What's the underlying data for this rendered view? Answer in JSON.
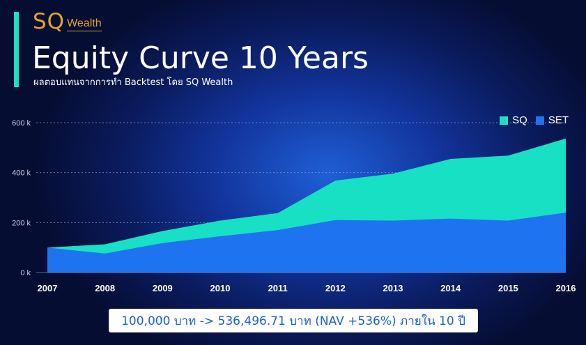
{
  "header": {
    "brand_sq": "SQ",
    "brand_wealth": "Wealth",
    "title": "Equity Curve 10 Years",
    "subtitle": "ผลตอบแทนจากการทำ Backtest โดย SQ Wealth"
  },
  "footer": {
    "summary": "100,000 บาท -> 536,496.71 บาท (NAV +536%) ภายใน 10 ปี"
  },
  "colors": {
    "sq": "#18e0c4",
    "set": "#1e74f0",
    "accent": "#18e0c4",
    "brand": "#e2a52a"
  },
  "chart_data": {
    "type": "area",
    "title": "",
    "xlabel": "",
    "ylabel": "",
    "x": [
      "2007",
      "2008",
      "2009",
      "2010",
      "2011",
      "2012",
      "2013",
      "2014",
      "2015",
      "2016"
    ],
    "series": [
      {
        "name": "SQ",
        "values": [
          100000,
          113000,
          166000,
          208000,
          238000,
          368000,
          396000,
          455000,
          468000,
          536496.71
        ]
      },
      {
        "name": "SET",
        "values": [
          100000,
          76000,
          118000,
          145000,
          170000,
          210000,
          208000,
          216000,
          208000,
          240000
        ]
      }
    ],
    "ylim": [
      0,
      600000
    ],
    "yticks": [
      0,
      200000,
      400000,
      600000
    ],
    "ytick_labels": [
      "0 k",
      "200 k",
      "400 k",
      "600 k"
    ],
    "grid": "dotted horizontal",
    "legend": "top-right"
  }
}
